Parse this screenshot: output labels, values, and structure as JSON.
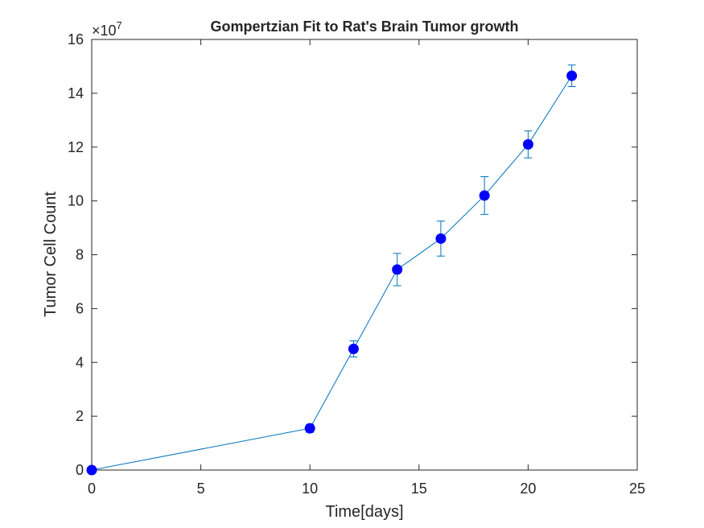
{
  "chart_data": {
    "type": "line",
    "title": "Gompertzian Fit to Rat's Brain Tumor growth",
    "xlabel": "Time[days]",
    "ylabel": "Tumor Cell Count",
    "y_exponent_base": "×10",
    "y_exponent_power": "7",
    "xlim": [
      0,
      25
    ],
    "ylim": [
      0,
      16
    ],
    "x_ticks": [
      0,
      5,
      10,
      15,
      20,
      25
    ],
    "y_ticks": [
      0,
      2,
      4,
      6,
      8,
      10,
      12,
      14,
      16
    ],
    "x_tick_labels": [
      "0",
      "5",
      "10",
      "15",
      "20",
      "25"
    ],
    "y_tick_labels": [
      "0",
      "2",
      "4",
      "6",
      "8",
      "10",
      "12",
      "14",
      "16"
    ],
    "grid": false,
    "series": [
      {
        "x": [
          0,
          10,
          12,
          14,
          16,
          18,
          20,
          22
        ],
        "y": [
          0.0,
          1.55,
          4.5,
          7.45,
          8.6,
          10.2,
          12.1,
          14.65
        ],
        "err": [
          0.0,
          0.15,
          0.3,
          0.6,
          0.65,
          0.7,
          0.5,
          0.4
        ],
        "line_color": "#0072BD",
        "marker_color": "#0000FF"
      }
    ]
  }
}
